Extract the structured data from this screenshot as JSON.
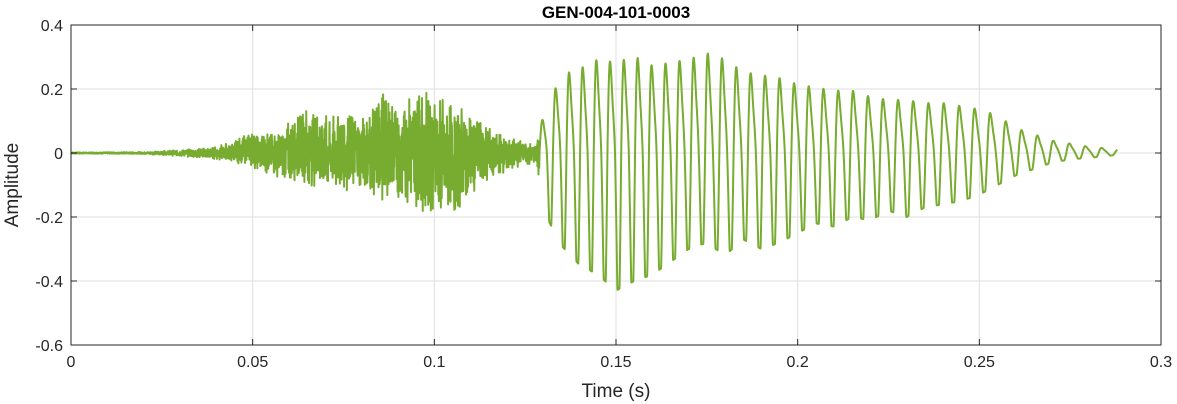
{
  "chart_data": {
    "type": "line",
    "title": "GEN-004-101-0003",
    "xlabel": "Time (s)",
    "ylabel": "Amplitude",
    "xlim": [
      0,
      0.3
    ],
    "ylim": [
      -0.6,
      0.4
    ],
    "xticks": [
      0,
      0.05,
      0.1,
      0.15,
      0.2,
      0.25,
      0.3
    ],
    "xtick_labels": [
      "0",
      "0.05",
      "0.1",
      "0.15",
      "0.2",
      "0.25",
      "0.3"
    ],
    "yticks": [
      -0.6,
      -0.4,
      -0.2,
      0,
      0.2,
      0.4
    ],
    "ytick_labels": [
      "-0.6",
      "-0.4",
      "-0.2",
      "0",
      "0.2",
      "0.4"
    ],
    "grid": true,
    "line_color": "#77AC30",
    "series": [
      {
        "x": [
          0,
          0.02,
          0.03,
          0.04,
          0.045,
          0.05,
          0.055,
          0.06,
          0.065,
          0.07,
          0.075,
          0.08,
          0.085,
          0.09,
          0.095,
          0.1,
          0.105,
          0.11,
          0.115,
          0.12,
          0.125,
          0.128,
          0.13,
          0.135,
          0.14,
          0.145,
          0.15,
          0.155,
          0.16,
          0.165,
          0.17,
          0.175,
          0.18,
          0.185,
          0.19,
          0.195,
          0.2,
          0.205,
          0.21,
          0.215,
          0.22,
          0.225,
          0.23,
          0.235,
          0.24,
          0.245,
          0.25,
          0.255,
          0.26,
          0.265,
          0.27,
          0.275,
          0.28,
          0.285,
          0.288
        ],
        "upper": [
          0.002,
          0.003,
          0.01,
          0.02,
          0.04,
          0.07,
          0.06,
          0.1,
          0.15,
          0.12,
          0.13,
          0.12,
          0.2,
          0.16,
          0.2,
          0.19,
          0.16,
          0.14,
          0.09,
          0.05,
          0.04,
          0.03,
          0.12,
          0.25,
          0.27,
          0.3,
          0.29,
          0.31,
          0.28,
          0.29,
          0.3,
          0.32,
          0.3,
          0.26,
          0.25,
          0.24,
          0.22,
          0.21,
          0.2,
          0.2,
          0.18,
          0.17,
          0.17,
          0.16,
          0.16,
          0.15,
          0.14,
          0.12,
          0.08,
          0.06,
          0.04,
          0.03,
          0.02,
          0.015,
          0.01
        ],
        "lower": [
          -0.002,
          -0.003,
          -0.01,
          -0.02,
          -0.03,
          -0.05,
          -0.07,
          -0.09,
          -0.1,
          -0.12,
          -0.12,
          -0.11,
          -0.17,
          -0.14,
          -0.18,
          -0.19,
          -0.2,
          -0.13,
          -0.09,
          -0.06,
          -0.04,
          -0.03,
          -0.18,
          -0.29,
          -0.35,
          -0.38,
          -0.43,
          -0.4,
          -0.38,
          -0.34,
          -0.3,
          -0.28,
          -0.32,
          -0.27,
          -0.3,
          -0.28,
          -0.25,
          -0.22,
          -0.23,
          -0.2,
          -0.21,
          -0.18,
          -0.2,
          -0.17,
          -0.16,
          -0.15,
          -0.13,
          -0.1,
          -0.07,
          -0.05,
          -0.03,
          -0.02,
          -0.015,
          -0.01,
          -0.005
        ]
      }
    ]
  }
}
